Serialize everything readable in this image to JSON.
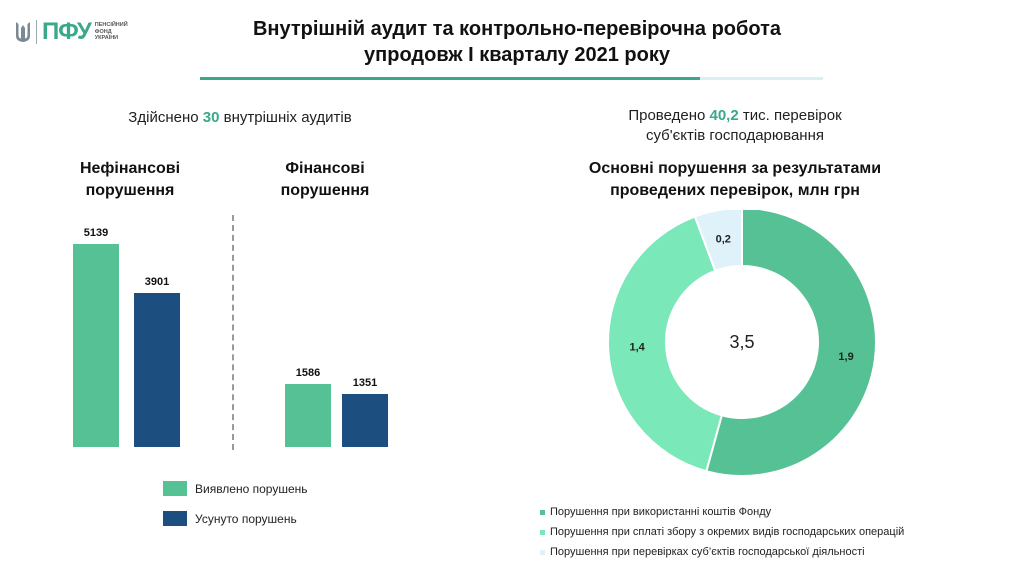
{
  "logo": {
    "pfu": "ПФУ",
    "org_lines": [
      "ПЕНСІЙНИЙ",
      "ФОНД",
      "УКРАЇНИ"
    ]
  },
  "title": {
    "line1": "Внутрішній аудит та контрольно-перевірочна робота",
    "line2": "упродовж I кварталу 2021 року"
  },
  "audits": {
    "prefix": "Здійснено",
    "number": "30",
    "suffix": "внутрішніх аудитів"
  },
  "checks": {
    "prefix": "Проведено",
    "number": "40,2",
    "suffix": "тис. перевірок",
    "line2": "суб'єктів господарювання"
  },
  "colors": {
    "accent": "#3aa88a",
    "detected": "#55c195",
    "eliminated": "#1c4f80",
    "donut_1": "#55c195",
    "donut_2": "#7ae8b8",
    "donut_3": "#dff2fa"
  },
  "chart_data": [
    {
      "type": "bar",
      "categories": [
        "Нефінансові порушення",
        "Фінансові порушення"
      ],
      "category_titles": [
        [
          "Нефінансові",
          "порушення"
        ],
        [
          "Фінансові",
          "порушення"
        ]
      ],
      "series": [
        {
          "name": "Виявлено порушень",
          "values": [
            5139,
            1586
          ],
          "labels": [
            "5139",
            "1586"
          ]
        },
        {
          "name": "Усунуто порушень",
          "values": [
            3901,
            1351
          ],
          "labels": [
            "3901",
            "1351"
          ]
        }
      ],
      "legend": "bottom",
      "grid": false
    },
    {
      "type": "pie",
      "title": [
        "Основні порушення за результатами",
        "проведених перевірок, млн грн"
      ],
      "total_label": "3,5",
      "slices": [
        {
          "name": "Порушення  при використанні  коштів Фонду",
          "value": 1.9,
          "label": "1,9"
        },
        {
          "name": "Порушення  при сплаті збору з окремих видів господарських операцій",
          "value": 1.4,
          "label": "1,4"
        },
        {
          "name": "Порушення  при перевірках суб’єктів господарської діяльності",
          "value": 0.2,
          "label": "0,2"
        }
      ],
      "legend": "bottom"
    }
  ]
}
